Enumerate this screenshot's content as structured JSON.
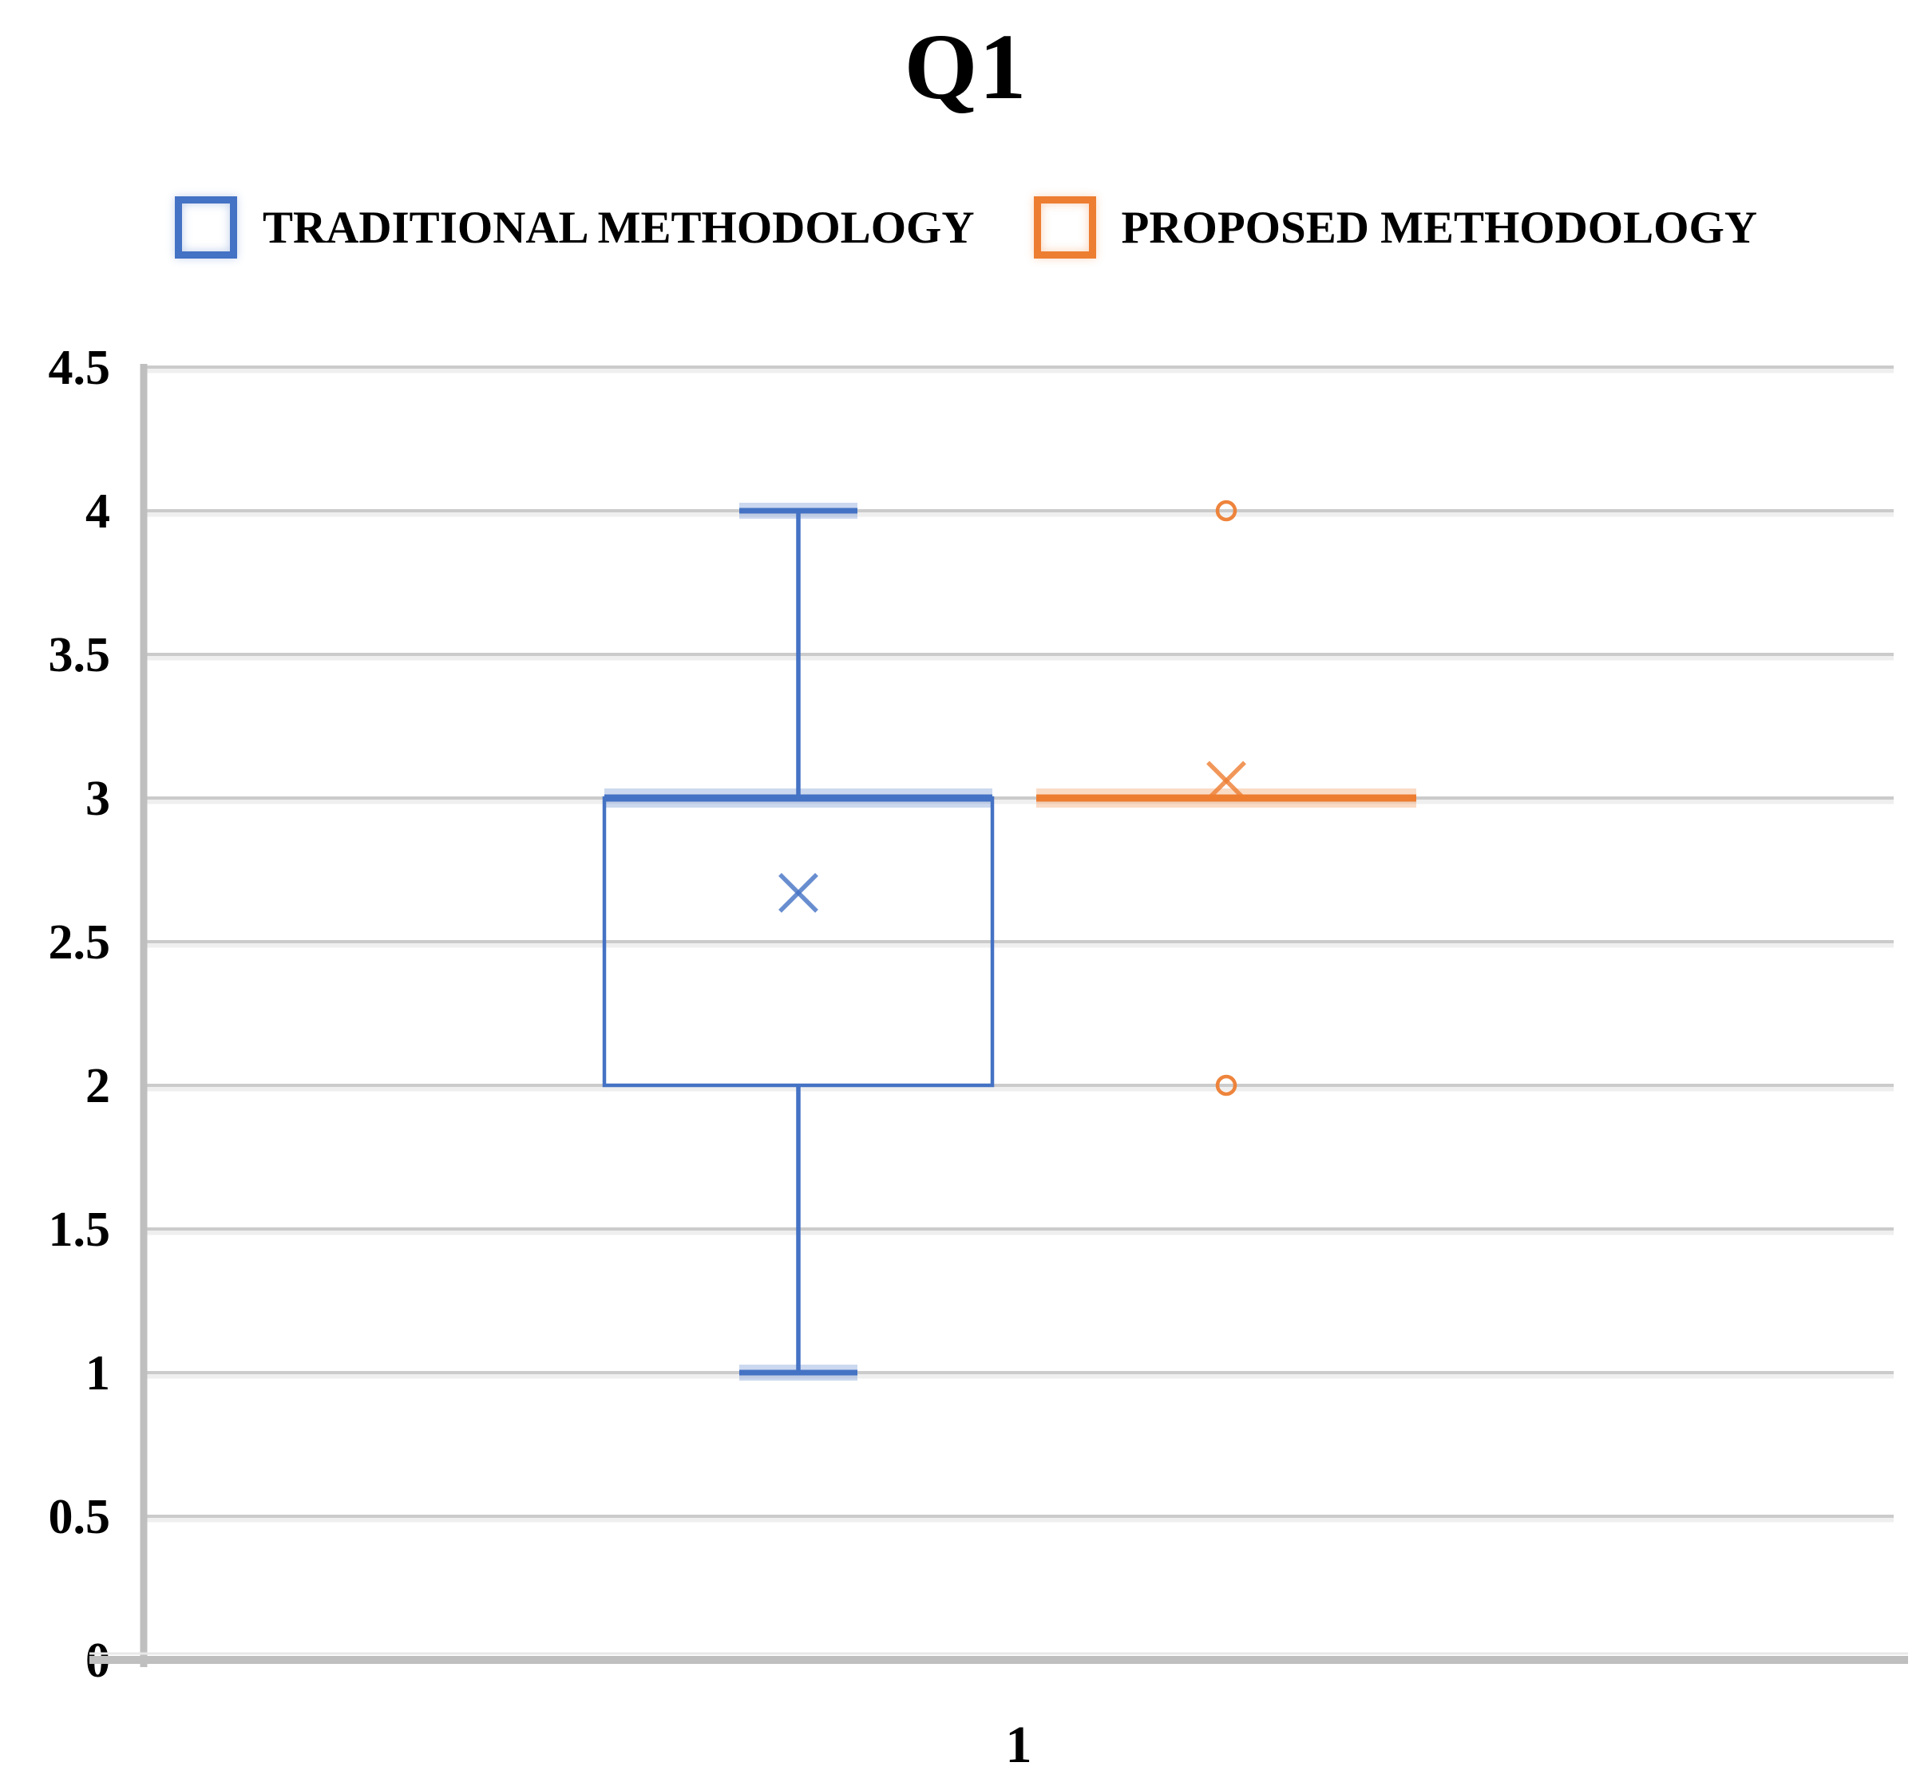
{
  "chart_data": {
    "type": "boxplot",
    "title": "Q1",
    "categories": [
      "1"
    ],
    "legend_position": "top",
    "grid": true,
    "y_axis": {
      "min": 0,
      "max": 4.5,
      "step": 0.5,
      "ticks": [
        "0",
        "0.5",
        "1",
        "1.5",
        "2",
        "2.5",
        "3",
        "3.5",
        "4",
        "4.5"
      ]
    },
    "style": {
      "grid_color": "#CBCBCB",
      "grid_halo_color": "#EFEFEF",
      "axis_color": "#BFBFBF",
      "text_color": "#000000",
      "background": "#FFFFFF"
    },
    "series": [
      {
        "name": "TRADITIONAL METHODOLOGY",
        "color": "#4472C4",
        "box": {
          "category": "1",
          "whisker_min": 1,
          "q1": 2,
          "median": 3,
          "q3": 3,
          "whisker_max": 4,
          "mean": 2.67,
          "outliers": []
        }
      },
      {
        "name": "PROPOSED METHODOLOGY",
        "color": "#ED7D31",
        "box": {
          "category": "1",
          "whisker_min": 3,
          "q1": 3,
          "median": 3,
          "q3": 3,
          "whisker_max": 3,
          "mean": 3.06,
          "outliers": [
            4,
            2
          ]
        }
      }
    ]
  }
}
